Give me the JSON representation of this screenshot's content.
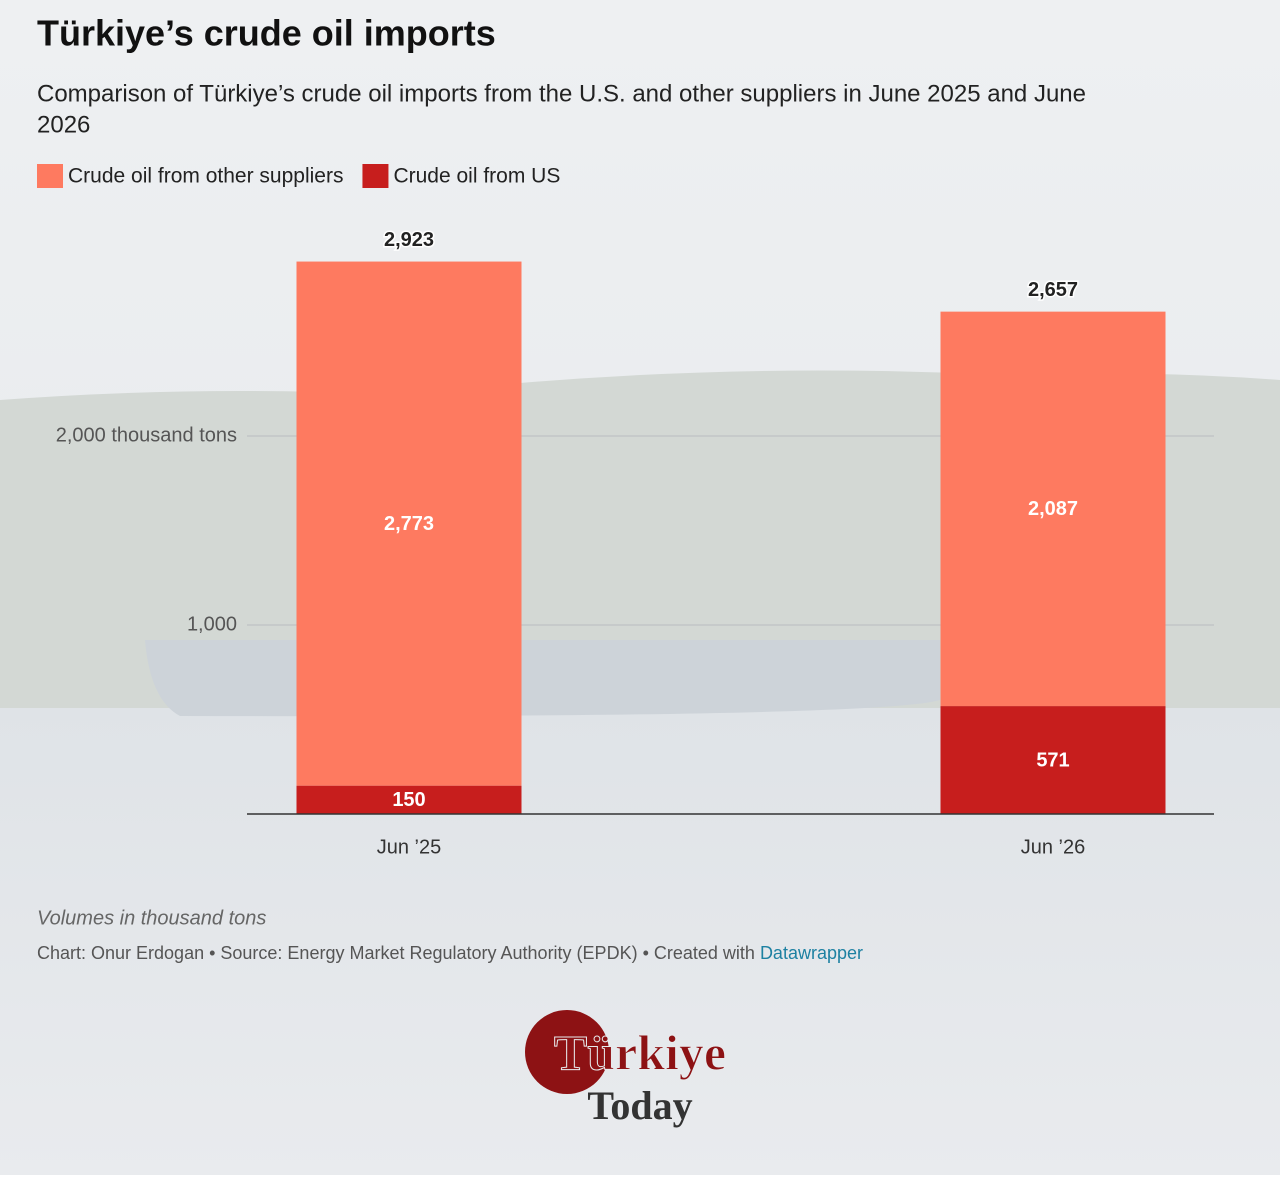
{
  "chart_data": {
    "type": "stacked-bar",
    "title": "Türkiye’s crude oil imports",
    "subtitle": [
      "Comparison of Türkiye’s crude oil imports from the U.S. and other suppliers in June 2025 and June",
      "2026"
    ],
    "categories": [
      "Jun ’25",
      "Jun ’26"
    ],
    "series": [
      {
        "name": "Crude oil from US",
        "color": "#c71e1d",
        "values": [
          150,
          571
        ]
      },
      {
        "name": "Crude oil from other suppliers",
        "color": "#fe7a60",
        "values": [
          2773,
          2087
        ],
        "value_labels": [
          "2,773",
          "2,087"
        ]
      }
    ],
    "totals": [
      2923,
      2657
    ],
    "total_labels": [
      "2,923",
      "2,657"
    ],
    "ylim": [
      0,
      3000
    ],
    "yticks": [
      {
        "value": 1000,
        "label": "1,000"
      },
      {
        "value": 2000,
        "label": "2,000 thousand tons"
      }
    ],
    "grid": true,
    "note": "Volumes in thousand tons",
    "credit": "Chart: Onur Erdogan • Source: Energy Market Regulatory Authority (EPDK) • Created with",
    "credit_link": "Datawrapper",
    "logo": [
      "Türkiye",
      "Today"
    ]
  }
}
